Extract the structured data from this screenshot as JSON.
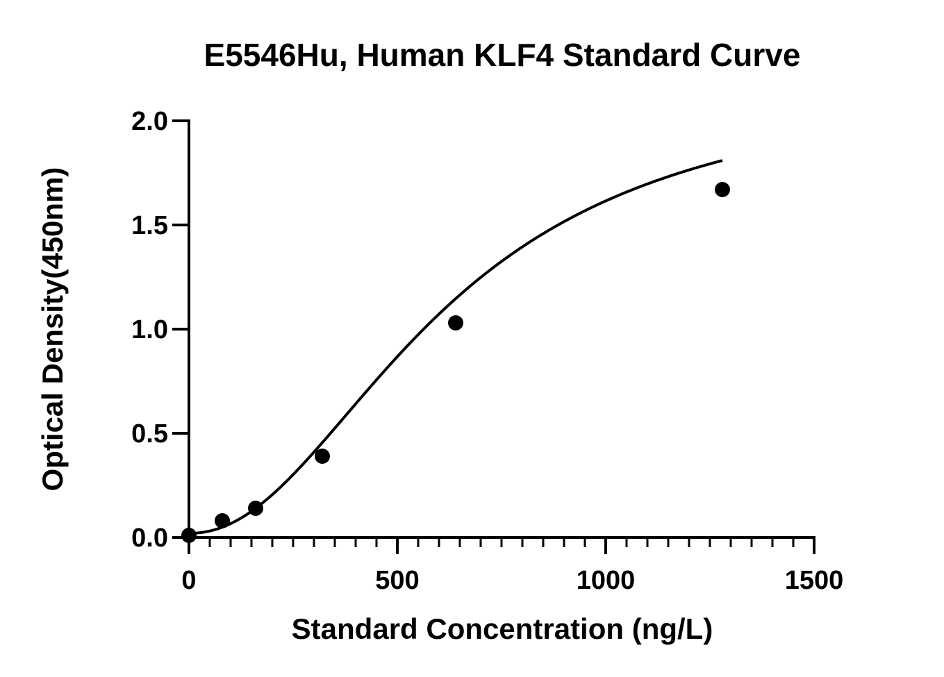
{
  "chart_data": {
    "type": "scatter",
    "title": "E5546Hu, Human KLF4 Standard Curve",
    "xlabel": "Standard Concentration (ng/L)",
    "ylabel": "Optical Density(450nm)",
    "xlim": [
      0,
      1500
    ],
    "ylim": [
      0,
      2.0
    ],
    "x_ticks": [
      0,
      500,
      1000,
      1500
    ],
    "x_tick_labels": [
      "0",
      "500",
      "1000",
      "1500"
    ],
    "y_ticks": [
      0,
      0.5,
      1.0,
      1.5,
      2.0
    ],
    "y_tick_labels": [
      "0.0",
      "0.5",
      "1.0",
      "1.5",
      "2.0"
    ],
    "x_minor_tick_step": 50,
    "grid": false,
    "series": [
      {
        "points": [
          {
            "x": 0,
            "y": 0.01
          },
          {
            "x": 80,
            "y": 0.08
          },
          {
            "x": 160,
            "y": 0.14
          },
          {
            "x": 320,
            "y": 0.39
          },
          {
            "x": 640,
            "y": 1.03
          },
          {
            "x": 1280,
            "y": 1.67
          }
        ],
        "marker_color": "#000000"
      }
    ],
    "fit_curve": {
      "type": "four-parameter logistic",
      "color": "#000000"
    }
  }
}
